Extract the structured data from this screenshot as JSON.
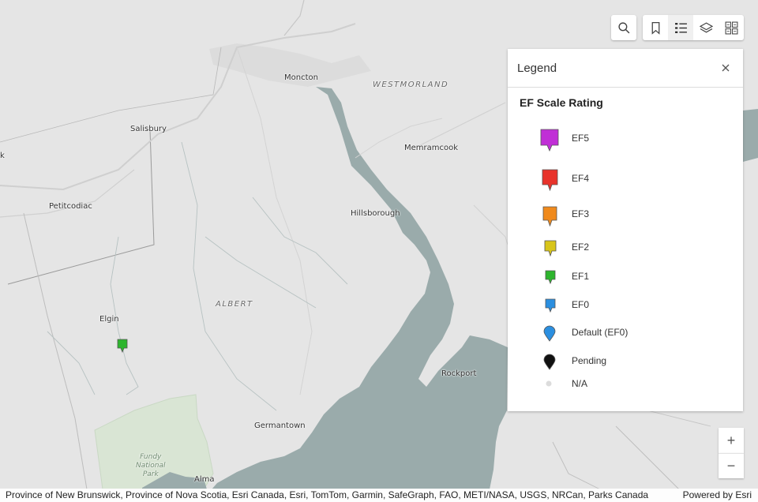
{
  "map": {
    "places": {
      "moncton": "Moncton",
      "westmorland": "WESTMORLAND",
      "salisbury": "Salisbury",
      "memramcook": "Memramcook",
      "petitcodiac": "Petitcodiac",
      "hillsborough": "Hillsborough",
      "albert": "ALBERT",
      "elgin": "Elgin",
      "rockport": "Rockport",
      "germantown": "Germantown",
      "fundy": "Fundy\nNational\nPark",
      "alma": "Alma",
      "edge_k": "k"
    },
    "marker": {
      "rating": "EF1",
      "color": "#2db52d"
    }
  },
  "toolbar": {
    "search_icon": "search-icon",
    "bookmark_icon": "bookmark-icon",
    "legend_icon": "legend-list-icon",
    "layers_icon": "layers-icon",
    "basemap_icon": "basemap-gallery-icon"
  },
  "legend": {
    "title": "Legend",
    "layer_title": "EF Scale Rating",
    "items": [
      {
        "label": "EF5",
        "color": "#c02ed6"
      },
      {
        "label": "EF4",
        "color": "#e8332b"
      },
      {
        "label": "EF3",
        "color": "#f08a1c"
      },
      {
        "label": "EF2",
        "color": "#d8c51a"
      },
      {
        "label": "EF1",
        "color": "#2db52d"
      },
      {
        "label": "EF0",
        "color": "#2b8fe0"
      },
      {
        "label": "Default (EF0)",
        "color": "#2b8fe0"
      },
      {
        "label": "Pending",
        "color": "#111111"
      },
      {
        "label": "N/A",
        "color": "#dcdcdc"
      }
    ]
  },
  "zoom": {
    "in": "+",
    "out": "−"
  },
  "attribution": {
    "text": "Province of New Brunswick, Province of Nova Scotia, Esri Canada, Esri, TomTom, Garmin, SafeGraph, FAO, METI/NASA, USGS, NRCan, Parks Canada",
    "powered": "Powered by Esri"
  }
}
